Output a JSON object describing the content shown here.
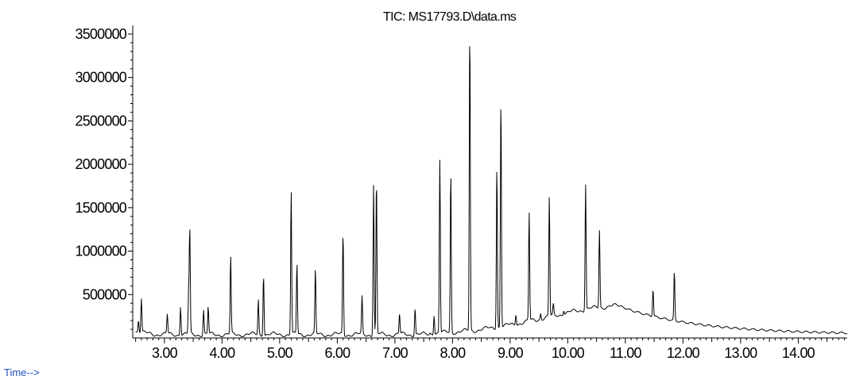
{
  "chart_data": {
    "type": "line",
    "title": "TIC: MS17793.D\\data.ms",
    "xlabel": "Time-->",
    "ylabel": "",
    "xlim": [
      2.45,
      14.85
    ],
    "ylim": [
      0,
      3600000
    ],
    "xticks": [
      3.0,
      4.0,
      5.0,
      6.0,
      7.0,
      8.0,
      9.0,
      10.0,
      11.0,
      12.0,
      13.0,
      14.0
    ],
    "xtick_labels": [
      "3.00",
      "4.00",
      "5.00",
      "6.00",
      "7.00",
      "8.00",
      "9.00",
      "10.00",
      "11.00",
      "12.00",
      "13.00",
      "14.00"
    ],
    "yticks": [
      500000,
      1000000,
      1500000,
      2000000,
      2500000,
      3000000,
      3500000
    ],
    "ytick_labels": [
      "500000",
      "1000000",
      "1500000",
      "2000000",
      "2500000",
      "3000000",
      "3500000"
    ],
    "grid": false,
    "legend": "none",
    "series": [
      {
        "peaks": [
          {
            "x": 2.55,
            "y": 200000
          },
          {
            "x": 2.6,
            "y": 450000
          },
          {
            "x": 3.05,
            "y": 280000
          },
          {
            "x": 3.28,
            "y": 350000
          },
          {
            "x": 3.44,
            "y": 1250000
          },
          {
            "x": 3.42,
            "y": 520000
          },
          {
            "x": 3.68,
            "y": 320000
          },
          {
            "x": 3.76,
            "y": 360000
          },
          {
            "x": 4.15,
            "y": 950000
          },
          {
            "x": 4.63,
            "y": 440000
          },
          {
            "x": 4.72,
            "y": 720000
          },
          {
            "x": 5.2,
            "y": 1700000
          },
          {
            "x": 5.3,
            "y": 860000
          },
          {
            "x": 5.62,
            "y": 790000
          },
          {
            "x": 6.1,
            "y": 1220000
          },
          {
            "x": 6.43,
            "y": 490000
          },
          {
            "x": 6.63,
            "y": 1760000
          },
          {
            "x": 6.68,
            "y": 1850000
          },
          {
            "x": 7.08,
            "y": 280000
          },
          {
            "x": 7.35,
            "y": 340000
          },
          {
            "x": 7.68,
            "y": 250000
          },
          {
            "x": 7.78,
            "y": 2050000
          },
          {
            "x": 7.97,
            "y": 1920000
          },
          {
            "x": 8.3,
            "y": 3600000
          },
          {
            "x": 8.77,
            "y": 1980000
          },
          {
            "x": 8.84,
            "y": 2780000
          },
          {
            "x": 9.1,
            "y": 260000
          },
          {
            "x": 9.33,
            "y": 1450000
          },
          {
            "x": 9.53,
            "y": 280000
          },
          {
            "x": 9.68,
            "y": 1640000
          },
          {
            "x": 9.75,
            "y": 400000
          },
          {
            "x": 9.93,
            "y": 310000
          },
          {
            "x": 10.31,
            "y": 1780000
          },
          {
            "x": 10.55,
            "y": 1240000
          },
          {
            "x": 11.48,
            "y": 560000
          },
          {
            "x": 11.85,
            "y": 770000
          }
        ]
      }
    ]
  }
}
